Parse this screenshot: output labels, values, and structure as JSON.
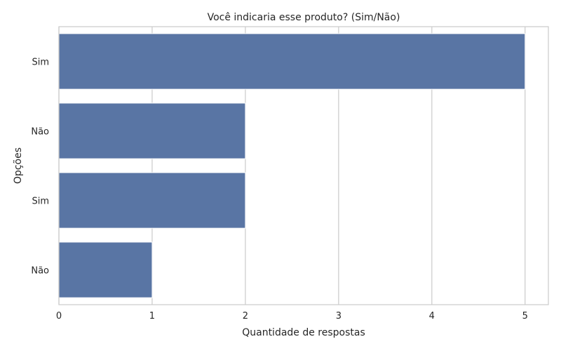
{
  "chart_data": {
    "type": "bar",
    "orientation": "horizontal",
    "title": "Você indicaria esse produto? (Sim/Não)",
    "xlabel": "Quantidade de respostas",
    "ylabel": "Opções",
    "categories": [
      "Sim",
      "Não",
      "Sim ",
      "Não "
    ],
    "values": [
      5,
      2,
      2,
      1
    ],
    "xlim": [
      0,
      5.25
    ],
    "xticks": [
      "0",
      "1",
      "2",
      "3",
      "4",
      "5"
    ],
    "grid": "vertical",
    "bar_color": "#5975a4"
  }
}
